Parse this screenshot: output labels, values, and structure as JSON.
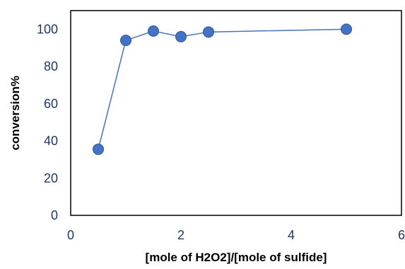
{
  "chart_data": {
    "type": "scatter",
    "title": "",
    "xlabel": "[mole of H2O2]/[mole of sulfide]",
    "ylabel": "conversion%",
    "xlim": [
      0,
      6
    ],
    "ylim": [
      0,
      110
    ],
    "xticks": [
      0,
      2,
      4,
      6
    ],
    "yticks": [
      0,
      20,
      40,
      60,
      80,
      100
    ],
    "grid": false,
    "legend": "none",
    "series": [
      {
        "x": [
          0.5,
          1,
          1.5,
          2,
          2.5,
          5
        ],
        "y": [
          35.5,
          94,
          99,
          96,
          98.5,
          100
        ],
        "mode": "lines+markers",
        "color": "#4472c4"
      }
    ]
  }
}
